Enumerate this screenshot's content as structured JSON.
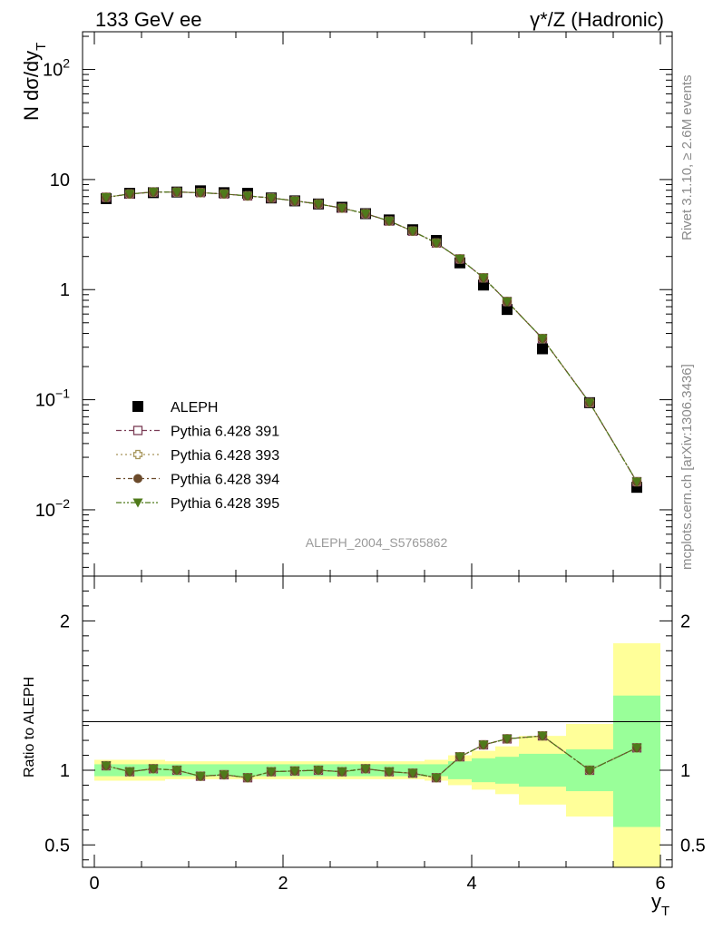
{
  "header": {
    "left": "133 GeV ee",
    "right": "γ*/Z (Hadronic)"
  },
  "side_labels": {
    "rivet": "Rivet 3.1.10, ≥ 2.6M events",
    "mcplots": "mcplots.cern.ch [arXiv:1306.3436]"
  },
  "watermark": "ALEPH_2004_S5765862",
  "colors": {
    "data": "#000000",
    "p391": "#7a3c55",
    "p393": "#a6955a",
    "p394": "#6b4a2b",
    "p395": "#4f7a1a",
    "band_inner": "#99ff99",
    "band_outer": "#ffff99"
  },
  "chart_data": [
    {
      "type": "scatter",
      "panel": "main",
      "ylabel": "N dσ/dy",
      "ylabel_sub": "T",
      "yscale": "log",
      "ylim": [
        0.0025,
        220
      ],
      "xlim": [
        -0.125,
        6.125
      ],
      "y_ticks": [
        {
          "value": 100,
          "base": "10",
          "exp": "2"
        },
        {
          "value": 10,
          "base": "10",
          "exp": ""
        },
        {
          "value": 1,
          "base": "1",
          "exp": ""
        },
        {
          "value": 0.1,
          "base": "10",
          "exp": "−1"
        },
        {
          "value": 0.01,
          "base": "10",
          "exp": "−2"
        }
      ],
      "x": [
        0.125,
        0.375,
        0.625,
        0.875,
        1.125,
        1.375,
        1.625,
        1.875,
        2.125,
        2.375,
        2.625,
        2.875,
        3.125,
        3.375,
        3.625,
        3.875,
        4.125,
        4.375,
        4.75,
        5.25,
        5.75
      ],
      "series": [
        {
          "name": "ALEPH",
          "marker": "square-filled",
          "values": [
            6.7,
            7.5,
            7.6,
            7.7,
            7.9,
            7.6,
            7.5,
            6.8,
            6.4,
            6.0,
            5.6,
            4.9,
            4.3,
            3.5,
            2.8,
            1.75,
            1.1,
            0.66,
            0.29,
            0.094,
            0.016
          ]
        },
        {
          "name": "Pythia 6.428 391",
          "marker": "square-open",
          "values": [
            6.9,
            7.4,
            7.7,
            7.7,
            7.6,
            7.4,
            7.1,
            6.8,
            6.4,
            6.0,
            5.5,
            4.9,
            4.2,
            3.4,
            2.65,
            1.9,
            1.28,
            0.78,
            0.36,
            0.094,
            0.018
          ]
        },
        {
          "name": "Pythia 6.428 393",
          "marker": "cross-open",
          "values": [
            6.9,
            7.4,
            7.7,
            7.7,
            7.6,
            7.4,
            7.1,
            6.8,
            6.4,
            6.0,
            5.5,
            4.9,
            4.2,
            3.4,
            2.65,
            1.9,
            1.28,
            0.78,
            0.36,
            0.094,
            0.018
          ]
        },
        {
          "name": "Pythia 6.428 394",
          "marker": "circle-filled",
          "values": [
            6.9,
            7.4,
            7.7,
            7.7,
            7.6,
            7.4,
            7.1,
            6.8,
            6.4,
            6.0,
            5.5,
            4.9,
            4.2,
            3.4,
            2.65,
            1.9,
            1.28,
            0.78,
            0.36,
            0.094,
            0.018
          ]
        },
        {
          "name": "Pythia 6.428 395",
          "marker": "triangle-down-filled",
          "values": [
            6.9,
            7.4,
            7.7,
            7.7,
            7.6,
            7.4,
            7.1,
            6.8,
            6.4,
            6.0,
            5.5,
            4.9,
            4.2,
            3.4,
            2.65,
            1.9,
            1.28,
            0.78,
            0.36,
            0.094,
            0.018
          ]
        }
      ],
      "legend": "lower-left"
    },
    {
      "type": "line",
      "panel": "ratio",
      "ylabel": "Ratio to ALEPH",
      "xlabel": "y",
      "xlabel_sub": "T",
      "ylim": [
        0.35,
        2.3
      ],
      "xlim": [
        -0.125,
        6.125
      ],
      "y_ticks": [
        0.5,
        1,
        2
      ],
      "y_tick_labels": [
        "0.5",
        "1",
        "2"
      ],
      "x_ticks": [
        0,
        2,
        4,
        6
      ],
      "x_tick_labels": [
        "0",
        "2",
        "4",
        "6"
      ],
      "bands": {
        "edges": [
          0,
          0.25,
          0.5,
          0.75,
          1.0,
          1.25,
          1.5,
          1.75,
          2.0,
          2.25,
          2.5,
          2.75,
          3.0,
          3.25,
          3.5,
          3.75,
          4.0,
          4.25,
          4.5,
          5.0,
          5.5,
          6.0
        ],
        "inner_lo": [
          0.96,
          0.96,
          0.96,
          0.96,
          0.96,
          0.96,
          0.96,
          0.96,
          0.96,
          0.96,
          0.96,
          0.96,
          0.96,
          0.96,
          0.96,
          0.94,
          0.92,
          0.91,
          0.89,
          0.86,
          0.62
        ],
        "inner_hi": [
          1.04,
          1.04,
          1.04,
          1.04,
          1.04,
          1.04,
          1.04,
          1.04,
          1.04,
          1.04,
          1.04,
          1.04,
          1.04,
          1.04,
          1.04,
          1.06,
          1.08,
          1.09,
          1.11,
          1.14,
          1.5
        ],
        "outer_lo": [
          0.93,
          0.93,
          0.93,
          0.94,
          0.94,
          0.94,
          0.94,
          0.94,
          0.94,
          0.94,
          0.94,
          0.94,
          0.94,
          0.94,
          0.93,
          0.9,
          0.87,
          0.84,
          0.77,
          0.69,
          0.35
        ],
        "outer_hi": [
          1.07,
          1.07,
          1.07,
          1.06,
          1.06,
          1.06,
          1.06,
          1.06,
          1.06,
          1.06,
          1.06,
          1.06,
          1.06,
          1.06,
          1.07,
          1.1,
          1.13,
          1.16,
          1.23,
          1.31,
          1.85
        ]
      },
      "series": [
        {
          "name": "Pythia 6.428 391",
          "values": [
            1.03,
            0.99,
            1.01,
            1.0,
            0.96,
            0.97,
            0.95,
            0.99,
            0.995,
            1.0,
            0.99,
            1.01,
            0.99,
            0.98,
            0.95,
            1.09,
            1.17,
            1.21,
            1.23,
            1.0,
            1.15
          ]
        },
        {
          "name": "Pythia 6.428 393",
          "values": [
            1.03,
            0.99,
            1.01,
            1.0,
            0.96,
            0.97,
            0.95,
            0.99,
            0.995,
            1.0,
            0.99,
            1.01,
            0.99,
            0.98,
            0.95,
            1.09,
            1.17,
            1.21,
            1.23,
            1.0,
            1.15
          ]
        },
        {
          "name": "Pythia 6.428 394",
          "values": [
            1.03,
            0.99,
            1.01,
            1.0,
            0.96,
            0.97,
            0.95,
            0.99,
            0.995,
            1.0,
            0.99,
            1.01,
            0.99,
            0.98,
            0.95,
            1.09,
            1.17,
            1.21,
            1.23,
            1.0,
            1.15
          ]
        },
        {
          "name": "Pythia 6.428 395",
          "values": [
            1.03,
            0.99,
            1.01,
            1.0,
            0.96,
            0.97,
            0.95,
            0.99,
            0.995,
            1.0,
            0.99,
            1.01,
            0.99,
            0.98,
            0.95,
            1.09,
            1.17,
            1.21,
            1.23,
            1.0,
            1.15
          ]
        }
      ]
    }
  ]
}
